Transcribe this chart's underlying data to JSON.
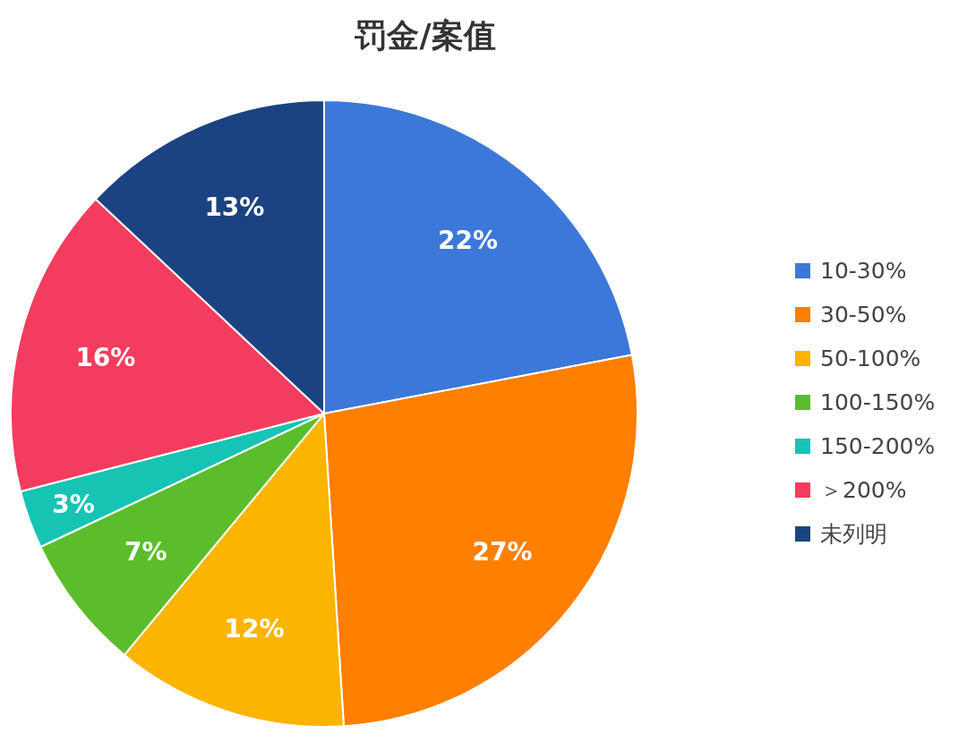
{
  "chart_data": {
    "type": "pie",
    "title": "罚金/案值",
    "categories": [
      "10-30%",
      "30-50%",
      "50-100%",
      "100-150%",
      "150-200%",
      "＞200%",
      "未列明"
    ],
    "values": [
      22,
      27,
      12,
      7,
      3,
      16,
      13
    ],
    "colors": [
      "#3c78d8",
      "#ff7f00",
      "#fbb400",
      "#5bbd2b",
      "#17c4b4",
      "#f43c5f",
      "#1c4381"
    ],
    "value_labels": [
      "22%",
      "27%",
      "12%",
      "7%",
      "3%",
      "16%",
      "13%"
    ],
    "legend": "right"
  }
}
